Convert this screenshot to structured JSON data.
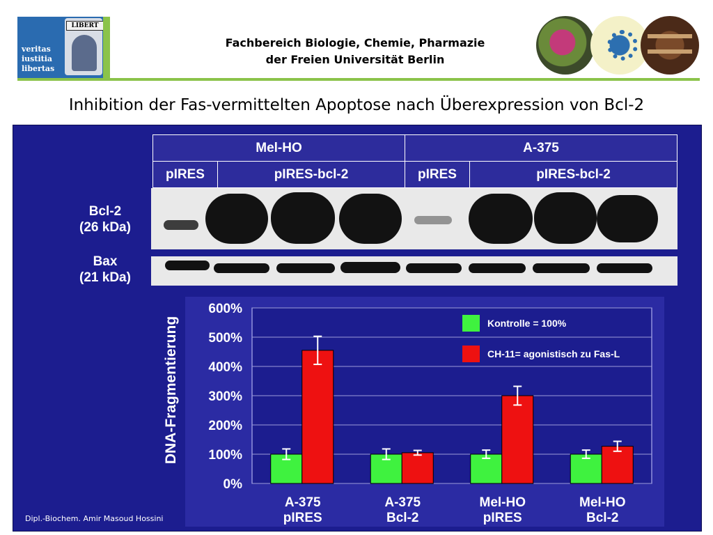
{
  "header": {
    "logo_lines": [
      "veritas",
      "iustitia",
      "libertas"
    ],
    "logo_banner": "LIBERT",
    "institution_line1": "Fachbereich Biologie, Chemie, Pharmazie",
    "institution_line2": "der Freien Universität Berlin"
  },
  "slide_title": "Inhibition der Fas-vermittelten Apoptose nach Überexpression von Bcl-2",
  "blot": {
    "cell_lines": [
      "Mel-HO",
      "A-375"
    ],
    "vectors": [
      "pIRES",
      "pIRES-bcl-2",
      "pIRES",
      "pIRES-bcl-2"
    ],
    "bcl2_label_1": "Bcl-2",
    "bcl2_label_2": "(26 kDa)",
    "bax_label_1": "Bax",
    "bax_label_2": "(21 kDa)"
  },
  "chart_data": {
    "type": "bar",
    "title": "",
    "xlabel": "",
    "ylabel": "DNA-Fragmentierung",
    "ylim": [
      0,
      600
    ],
    "yticks": [
      "0%",
      "100%",
      "200%",
      "300%",
      "400%",
      "500%",
      "600%"
    ],
    "categories": [
      [
        "A-375",
        "pIRES"
      ],
      [
        "A-375",
        "Bcl-2"
      ],
      [
        "Mel-HO",
        "pIRES"
      ],
      [
        "Mel-HO",
        "Bcl-2"
      ]
    ],
    "series": [
      {
        "name": "Kontrolle = 100%",
        "color": "#3ff23f",
        "values": [
          100,
          100,
          100,
          100
        ],
        "errors": [
          18,
          18,
          14,
          14
        ]
      },
      {
        "name": "CH-11= agonistisch zu Fas-L",
        "color": "#ee1111",
        "values": [
          455,
          105,
          300,
          127
        ],
        "errors": [
          48,
          8,
          32,
          17
        ]
      }
    ],
    "grid": true,
    "legend_position": "top-right"
  },
  "footer_author": "Dipl.-Biochem. Amir Masoud Hossini"
}
